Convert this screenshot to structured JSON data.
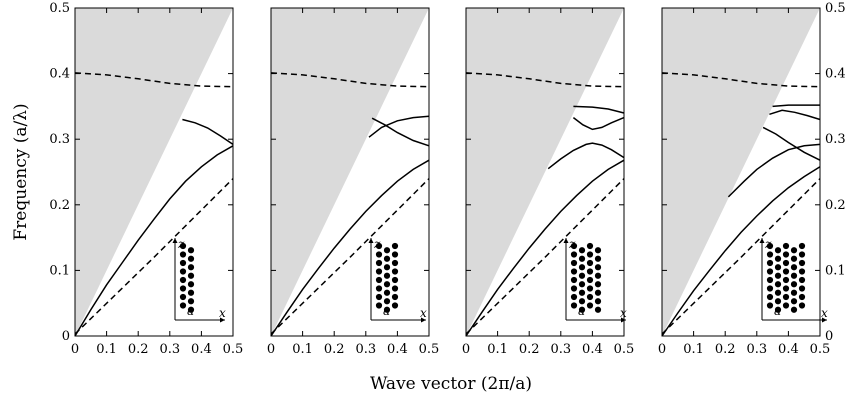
{
  "chart_data": {
    "type": "line",
    "ylabel": "Frequency (a/λ)",
    "xlabel": "Wave vector (2π/a)",
    "xlim": [
      0,
      0.5
    ],
    "ylim": [
      0,
      0.5
    ],
    "x_ticks": [
      "0",
      "0.1",
      "0.2",
      "0.3",
      "0.4",
      "0.5"
    ],
    "y_ticks": [
      "0",
      "0.1",
      "0.2",
      "0.3",
      "0.4",
      "0.5"
    ],
    "light_cone_slope": 1.0,
    "inset_labels": {
      "vertical_axis": "z",
      "horizontal_axis": "x",
      "lattice_constant": "a"
    },
    "panels": [
      {
        "inset_rows": 2,
        "series": [
          {
            "style": "dashed",
            "points": [
              [
                0,
                0.401
              ],
              [
                0.1,
                0.398
              ],
              [
                0.2,
                0.392
              ],
              [
                0.3,
                0.385
              ],
              [
                0.4,
                0.381
              ],
              [
                0.5,
                0.38
              ]
            ]
          },
          {
            "style": "dashed",
            "points": [
              [
                0,
                0.003
              ],
              [
                0.25,
                0.12
              ],
              [
                0.5,
                0.24
              ]
            ]
          },
          {
            "style": "solid",
            "points": [
              [
                0,
                0
              ],
              [
                0.05,
                0.04
              ],
              [
                0.1,
                0.078
              ],
              [
                0.15,
                0.112
              ],
              [
                0.2,
                0.146
              ],
              [
                0.25,
                0.178
              ],
              [
                0.3,
                0.209
              ],
              [
                0.35,
                0.236
              ],
              [
                0.4,
                0.258
              ],
              [
                0.45,
                0.276
              ],
              [
                0.5,
                0.29
              ]
            ]
          },
          {
            "style": "solid",
            "points": [
              [
                0.34,
                0.33
              ],
              [
                0.38,
                0.325
              ],
              [
                0.42,
                0.317
              ],
              [
                0.46,
                0.305
              ],
              [
                0.5,
                0.292
              ]
            ]
          }
        ]
      },
      {
        "inset_rows": 3,
        "series": [
          {
            "style": "dashed",
            "points": [
              [
                0,
                0.401
              ],
              [
                0.1,
                0.398
              ],
              [
                0.2,
                0.392
              ],
              [
                0.3,
                0.385
              ],
              [
                0.4,
                0.381
              ],
              [
                0.5,
                0.38
              ]
            ]
          },
          {
            "style": "dashed",
            "points": [
              [
                0,
                0.003
              ],
              [
                0.25,
                0.12
              ],
              [
                0.5,
                0.24
              ]
            ]
          },
          {
            "style": "solid",
            "points": [
              [
                0,
                0
              ],
              [
                0.05,
                0.036
              ],
              [
                0.1,
                0.071
              ],
              [
                0.15,
                0.103
              ],
              [
                0.2,
                0.134
              ],
              [
                0.25,
                0.163
              ],
              [
                0.3,
                0.19
              ],
              [
                0.35,
                0.214
              ],
              [
                0.4,
                0.236
              ],
              [
                0.45,
                0.254
              ],
              [
                0.5,
                0.268
              ]
            ]
          },
          {
            "style": "solid",
            "points": [
              [
                0.31,
                0.303
              ],
              [
                0.35,
                0.318
              ],
              [
                0.4,
                0.328
              ],
              [
                0.45,
                0.333
              ],
              [
                0.5,
                0.335
              ]
            ]
          },
          {
            "style": "solid",
            "points": [
              [
                0.32,
                0.332
              ],
              [
                0.36,
                0.322
              ],
              [
                0.4,
                0.31
              ],
              [
                0.45,
                0.298
              ],
              [
                0.5,
                0.29
              ]
            ]
          }
        ]
      },
      {
        "inset_rows": 4,
        "series": [
          {
            "style": "dashed",
            "points": [
              [
                0,
                0.401
              ],
              [
                0.1,
                0.398
              ],
              [
                0.2,
                0.392
              ],
              [
                0.3,
                0.385
              ],
              [
                0.4,
                0.381
              ],
              [
                0.5,
                0.38
              ]
            ]
          },
          {
            "style": "dashed",
            "points": [
              [
                0,
                0.003
              ],
              [
                0.25,
                0.12
              ],
              [
                0.5,
                0.24
              ]
            ]
          },
          {
            "style": "solid",
            "points": [
              [
                0,
                0
              ],
              [
                0.05,
                0.036
              ],
              [
                0.1,
                0.071
              ],
              [
                0.15,
                0.103
              ],
              [
                0.2,
                0.134
              ],
              [
                0.25,
                0.163
              ],
              [
                0.3,
                0.19
              ],
              [
                0.35,
                0.214
              ],
              [
                0.4,
                0.236
              ],
              [
                0.45,
                0.254
              ],
              [
                0.5,
                0.268
              ]
            ]
          },
          {
            "style": "solid",
            "points": [
              [
                0.26,
                0.255
              ],
              [
                0.3,
                0.27
              ],
              [
                0.34,
                0.283
              ],
              [
                0.38,
                0.292
              ],
              [
                0.4,
                0.294
              ],
              [
                0.43,
                0.291
              ],
              [
                0.46,
                0.284
              ],
              [
                0.5,
                0.272
              ]
            ]
          },
          {
            "style": "solid",
            "points": [
              [
                0.34,
                0.333
              ],
              [
                0.37,
                0.322
              ],
              [
                0.4,
                0.315
              ],
              [
                0.43,
                0.318
              ],
              [
                0.46,
                0.325
              ],
              [
                0.5,
                0.333
              ]
            ]
          },
          {
            "style": "solid",
            "points": [
              [
                0.34,
                0.35
              ],
              [
                0.4,
                0.349
              ],
              [
                0.45,
                0.346
              ],
              [
                0.5,
                0.34
              ]
            ]
          }
        ]
      },
      {
        "inset_rows": 5,
        "series": [
          {
            "style": "dashed",
            "points": [
              [
                0,
                0.401
              ],
              [
                0.1,
                0.398
              ],
              [
                0.2,
                0.392
              ],
              [
                0.3,
                0.385
              ],
              [
                0.4,
                0.381
              ],
              [
                0.5,
                0.38
              ]
            ]
          },
          {
            "style": "dashed",
            "points": [
              [
                0,
                0.003
              ],
              [
                0.25,
                0.12
              ],
              [
                0.5,
                0.24
              ]
            ]
          },
          {
            "style": "solid",
            "points": [
              [
                0,
                0
              ],
              [
                0.05,
                0.035
              ],
              [
                0.1,
                0.069
              ],
              [
                0.15,
                0.1
              ],
              [
                0.2,
                0.13
              ],
              [
                0.25,
                0.158
              ],
              [
                0.3,
                0.183
              ],
              [
                0.35,
                0.206
              ],
              [
                0.4,
                0.226
              ],
              [
                0.45,
                0.243
              ],
              [
                0.5,
                0.258
              ]
            ]
          },
          {
            "style": "solid",
            "points": [
              [
                0.21,
                0.212
              ],
              [
                0.26,
                0.236
              ],
              [
                0.3,
                0.254
              ],
              [
                0.35,
                0.271
              ],
              [
                0.4,
                0.284
              ],
              [
                0.45,
                0.29
              ],
              [
                0.5,
                0.292
              ]
            ]
          },
          {
            "style": "solid",
            "points": [
              [
                0.32,
                0.318
              ],
              [
                0.36,
                0.308
              ],
              [
                0.4,
                0.295
              ],
              [
                0.45,
                0.28
              ],
              [
                0.5,
                0.268
              ]
            ]
          },
          {
            "style": "solid",
            "points": [
              [
                0.34,
                0.338
              ],
              [
                0.38,
                0.344
              ],
              [
                0.42,
                0.341
              ],
              [
                0.46,
                0.336
              ],
              [
                0.5,
                0.33
              ]
            ]
          },
          {
            "style": "solid",
            "points": [
              [
                0.35,
                0.35
              ],
              [
                0.4,
                0.352
              ],
              [
                0.45,
                0.352
              ],
              [
                0.5,
                0.352
              ]
            ]
          }
        ]
      }
    ]
  }
}
